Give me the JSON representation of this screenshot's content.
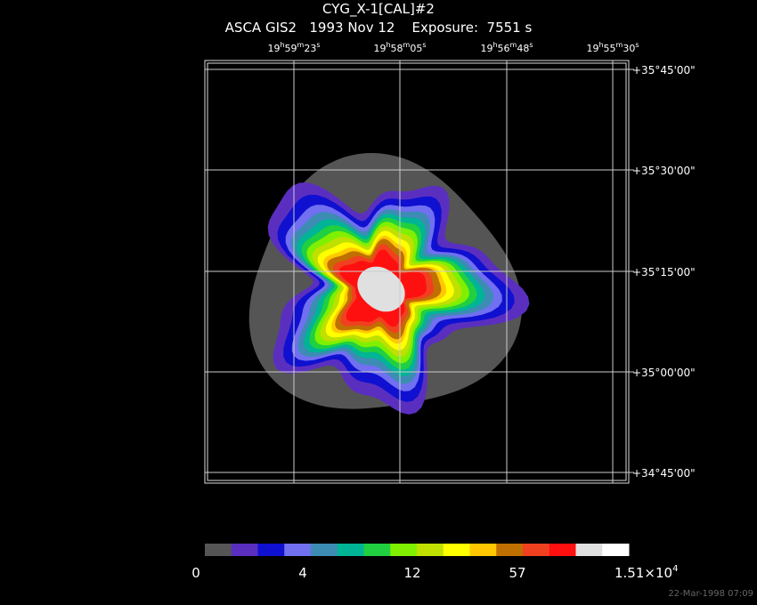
{
  "title": "CYG_X-1[CAL]#2",
  "subtitle": "ASCA GIS2   1993 Nov 12    Exposure:  7551 s",
  "ra_labels": [
    [
      "19",
      "h",
      "59",
      "m",
      "23",
      "s"
    ],
    [
      "19",
      "h",
      "58",
      "m",
      "05",
      "s"
    ],
    [
      "19",
      "h",
      "56",
      "m",
      "48",
      "s"
    ],
    [
      "19",
      "h",
      "55",
      "m",
      "30",
      "s"
    ]
  ],
  "dec_labels": [
    "+35°45'00\"",
    "+35°30'00\"",
    "+35°15'00\"",
    "+35°00'00\"",
    "+34°45'00\""
  ],
  "colorbar": {
    "colors": [
      "#555555",
      "#5a2fc0",
      "#1010d0",
      "#7070f0",
      "#3c8cb4",
      "#00b496",
      "#20d040",
      "#80f000",
      "#c0e000",
      "#ffff00",
      "#ffc800",
      "#c07000",
      "#f04020",
      "#ff1010",
      "#e0e0e0",
      "#ffffff"
    ],
    "labels": [
      "0",
      "4",
      "12",
      "57"
    ],
    "max_label": [
      "1.51×10",
      "4"
    ]
  },
  "timestamp": "22-Mar-1998 07:09"
}
